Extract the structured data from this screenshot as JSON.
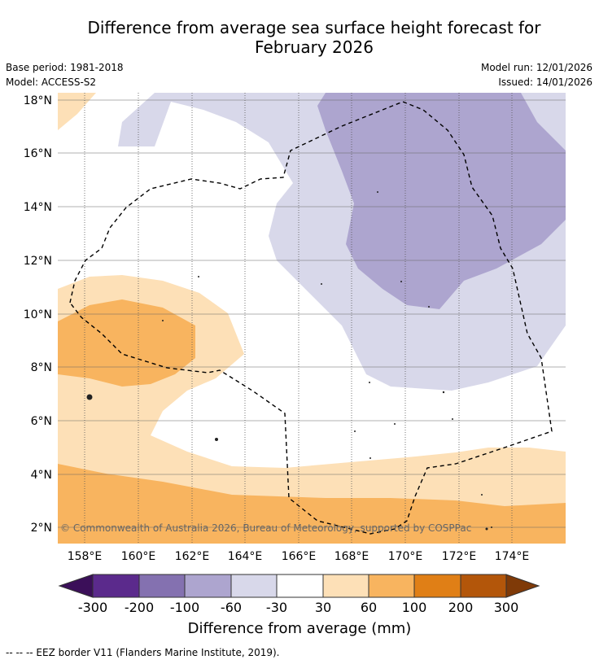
{
  "title_line1": "Difference from average sea surface height forecast for",
  "title_line2": "February 2026",
  "base_period": "Base period: 1981-2018",
  "model": "Model: ACCESS-S2",
  "model_run": "Model run: 12/01/2026",
  "issued": "Issued: 14/01/2026",
  "map": {
    "lat_ticks": [
      "18°N",
      "16°N",
      "14°N",
      "12°N",
      "10°N",
      "8°N",
      "6°N",
      "4°N",
      "2°N"
    ],
    "lon_ticks": [
      "158°E",
      "160°E",
      "162°E",
      "164°E",
      "166°E",
      "168°E",
      "170°E",
      "172°E",
      "174°E"
    ],
    "copyright": "© Commonwealth of Australia 2026, Bureau of Meteorology, supported by COSPPac"
  },
  "colorbar": {
    "title": "Difference from average (mm)",
    "labels": [
      "-300",
      "-200",
      "-100",
      "-60",
      "-30",
      "30",
      "60",
      "100",
      "200",
      "300"
    ],
    "colors": [
      "#3b0f59",
      "#5b2a8c",
      "#8471b0",
      "#ada5cf",
      "#d8d8ea",
      "#ffffff",
      "#fde0b7",
      "#f8b45f",
      "#e07f16",
      "#b3560a",
      "#7f3a08"
    ]
  },
  "footnote": "-- -- -- EEZ border V11 (Flanders Marine Institute, 2019)."
}
